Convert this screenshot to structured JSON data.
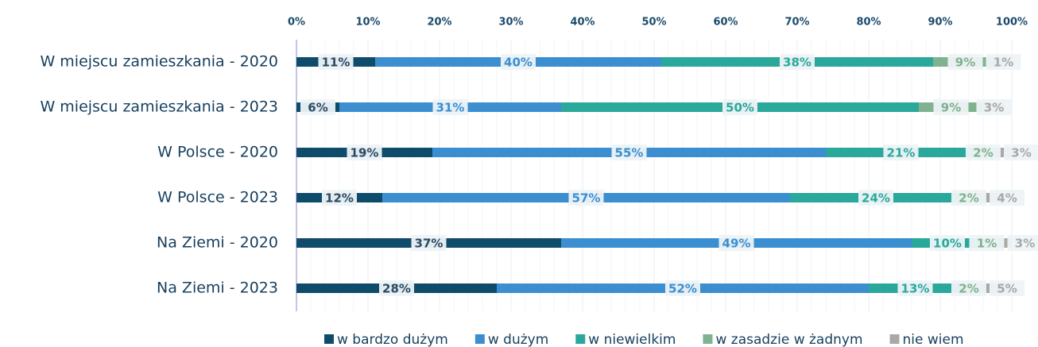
{
  "chart_data": {
    "type": "stacked-bar-horizontal",
    "categories": [
      "W miejscu zamieszkania - 2020",
      "W miejscu zamieszkania - 2023",
      "W Polsce - 2020",
      "W Polsce - 2023",
      "Na Ziemi - 2020",
      "Na Ziemi - 2023"
    ],
    "series": [
      {
        "name": "w bardzo dużym",
        "color": "#0f4c6c",
        "values": [
          11,
          6,
          19,
          12,
          37,
          28
        ],
        "value_labels": [
          "11%",
          "6%",
          "19%",
          "12%",
          "37%",
          "28%"
        ]
      },
      {
        "name": "w dużym",
        "color": "#3b8fd1",
        "values": [
          40,
          31,
          55,
          57,
          49,
          52
        ],
        "value_labels": [
          "40%",
          "31%",
          "55%",
          "57%",
          "49%",
          "52%"
        ]
      },
      {
        "name": "w niewielkim",
        "color": "#2ba89c",
        "values": [
          38,
          50,
          21,
          24,
          10,
          13
        ],
        "value_labels": [
          "38%",
          "50%",
          "21%",
          "24%",
          "10%",
          "13%"
        ]
      },
      {
        "name": "w zasadzie w żadnym",
        "color": "#7fb28e",
        "values": [
          9,
          9,
          2,
          2,
          1,
          2
        ],
        "value_labels": [
          "9%",
          "9%",
          "2%",
          "2%",
          "1%",
          "2%"
        ]
      },
      {
        "name": "nie wiem",
        "color": "#a8a8a8",
        "values": [
          1,
          3,
          3,
          4,
          3,
          5
        ],
        "value_labels": [
          "1%",
          "3%",
          "3%",
          "4%",
          "3%",
          "5%"
        ]
      }
    ],
    "xlim": [
      0,
      100
    ],
    "xticks": [
      {
        "value": 0,
        "label": "0%"
      },
      {
        "value": 10,
        "label": "10%"
      },
      {
        "value": 20,
        "label": "20%"
      },
      {
        "value": 30,
        "label": "30%"
      },
      {
        "value": 40,
        "label": "40%"
      },
      {
        "value": 50,
        "label": "50%"
      },
      {
        "value": 60,
        "label": "60%"
      },
      {
        "value": 70,
        "label": "70%"
      },
      {
        "value": 80,
        "label": "80%"
      },
      {
        "value": 90,
        "label": "90%"
      },
      {
        "value": 100,
        "label": "100%"
      }
    ],
    "grid": true,
    "legend": "bottom"
  }
}
